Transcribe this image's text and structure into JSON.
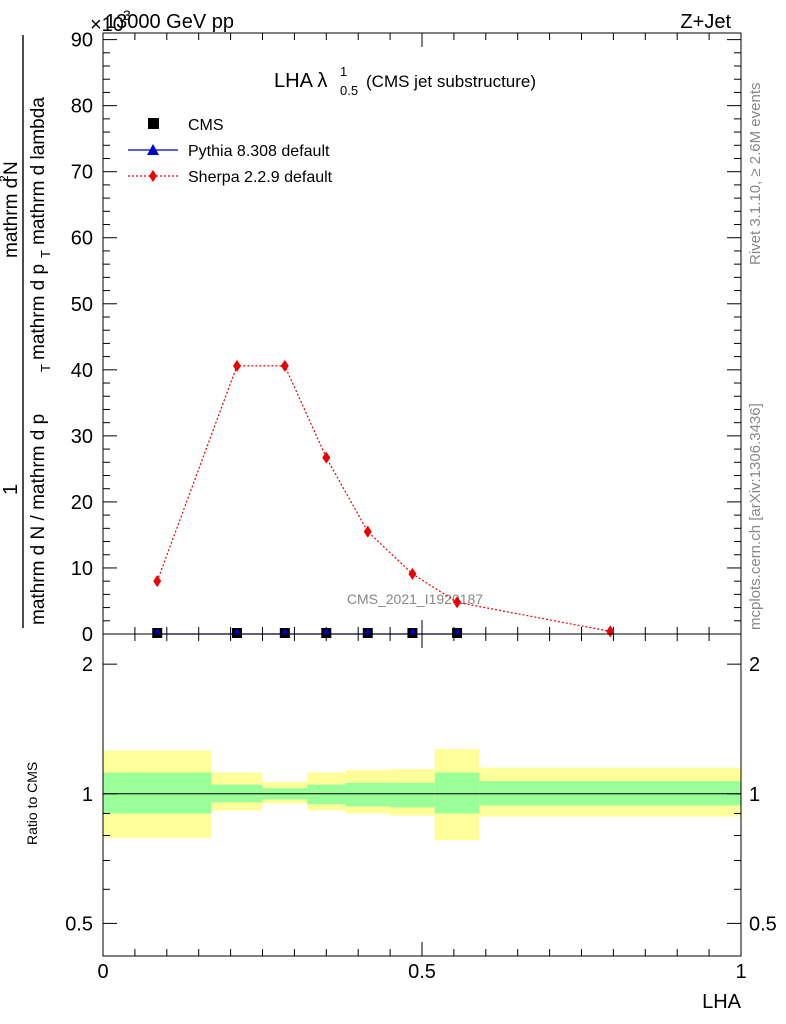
{
  "header": {
    "left_title": "13000 GeV pp",
    "right_title": "Z+Jet",
    "exponent_label": "×10",
    "exponent_value": "3"
  },
  "side_labels": {
    "rivet": "Rivet 3.1.10, ≥ 2.6M events",
    "mcplots": "mcplots.cern.ch [arXiv:1306.3436]"
  },
  "watermark": "CMS_2021_I1920187",
  "colors": {
    "cms": "#000000",
    "pythia": "#0000cc",
    "sherpa": "#ee0000",
    "band_inner": "#99ff99",
    "band_outer": "#ffff99"
  },
  "chart_data": [
    {
      "type": "line",
      "panel": "main",
      "title": "LHA λ",
      "title_sup": "1",
      "title_sub": "0.5",
      "title_suffix": "(CMS jet substructure)",
      "ylabel_num": "1",
      "ylabel_den_left": "mathrm d N / mathrm d p",
      "ylabel_den_left_sub": "T",
      "ylabel_den_right_top": "mathrm d",
      "ylabel_den_right_sup": "2",
      "ylabel_den_right_n": "N",
      "ylabel_den_right_bottom": "mathrm d p",
      "ylabel_den_right_bottom_sub": "T",
      "ylabel_den_right_tail": "mathrm d lambda",
      "xlim": [
        0,
        1
      ],
      "ylim": [
        0,
        91000
      ],
      "y_ticks": [
        0,
        10000,
        20000,
        30000,
        40000,
        50000,
        60000,
        70000,
        80000,
        90000
      ],
      "y_tick_labels": [
        "0",
        "10",
        "20",
        "30",
        "40",
        "50",
        "60",
        "70",
        "80",
        "90"
      ],
      "legend_position": "top-left",
      "series": [
        {
          "name": "CMS",
          "marker": "square",
          "x": [
            0.085,
            0.21,
            0.285,
            0.35,
            0.415,
            0.485,
            0.555
          ],
          "y": [
            0,
            0,
            0,
            0,
            0,
            0,
            0
          ]
        },
        {
          "name": "Pythia 8.308 default",
          "marker": "triangle",
          "line": "solid",
          "x": [
            0.085,
            0.21,
            0.285,
            0.35,
            0.415,
            0.485,
            0.555
          ],
          "y": [
            0,
            0,
            0,
            0,
            0,
            0,
            0
          ]
        },
        {
          "name": "Sherpa 2.2.9 default",
          "marker": "diamond",
          "line": "dotted",
          "x": [
            0.085,
            0.21,
            0.285,
            0.35,
            0.415,
            0.485,
            0.555,
            0.795
          ],
          "y": [
            8000,
            40600,
            40600,
            26700,
            15500,
            9100,
            4800,
            400
          ]
        }
      ]
    },
    {
      "type": "area",
      "panel": "ratio",
      "ylabel": "Ratio to CMS",
      "xlabel": "LHA",
      "scale": "log",
      "ylim": [
        0.42,
        2.35
      ],
      "y_ticks": [
        0.5,
        1,
        2
      ],
      "y_tick_labels": [
        "0.5",
        "1",
        "2"
      ],
      "x_ticks": [
        0,
        0.5,
        1
      ],
      "x_tick_labels": [
        "0",
        "0.5",
        "1"
      ],
      "reference_line": 1,
      "bands": {
        "edges": [
          0,
          0.17,
          0.25,
          0.32,
          0.38,
          0.45,
          0.52,
          0.59,
          1.0
        ],
        "inner_low": [
          0.9,
          0.955,
          0.97,
          0.945,
          0.935,
          0.93,
          0.9,
          0.94
        ],
        "inner_high": [
          1.12,
          1.05,
          1.03,
          1.05,
          1.06,
          1.06,
          1.12,
          1.07
        ],
        "outer_low": [
          0.79,
          0.915,
          0.95,
          0.915,
          0.9,
          0.89,
          0.78,
          0.885
        ],
        "outer_high": [
          1.26,
          1.12,
          1.065,
          1.12,
          1.135,
          1.14,
          1.27,
          1.15
        ]
      }
    }
  ]
}
